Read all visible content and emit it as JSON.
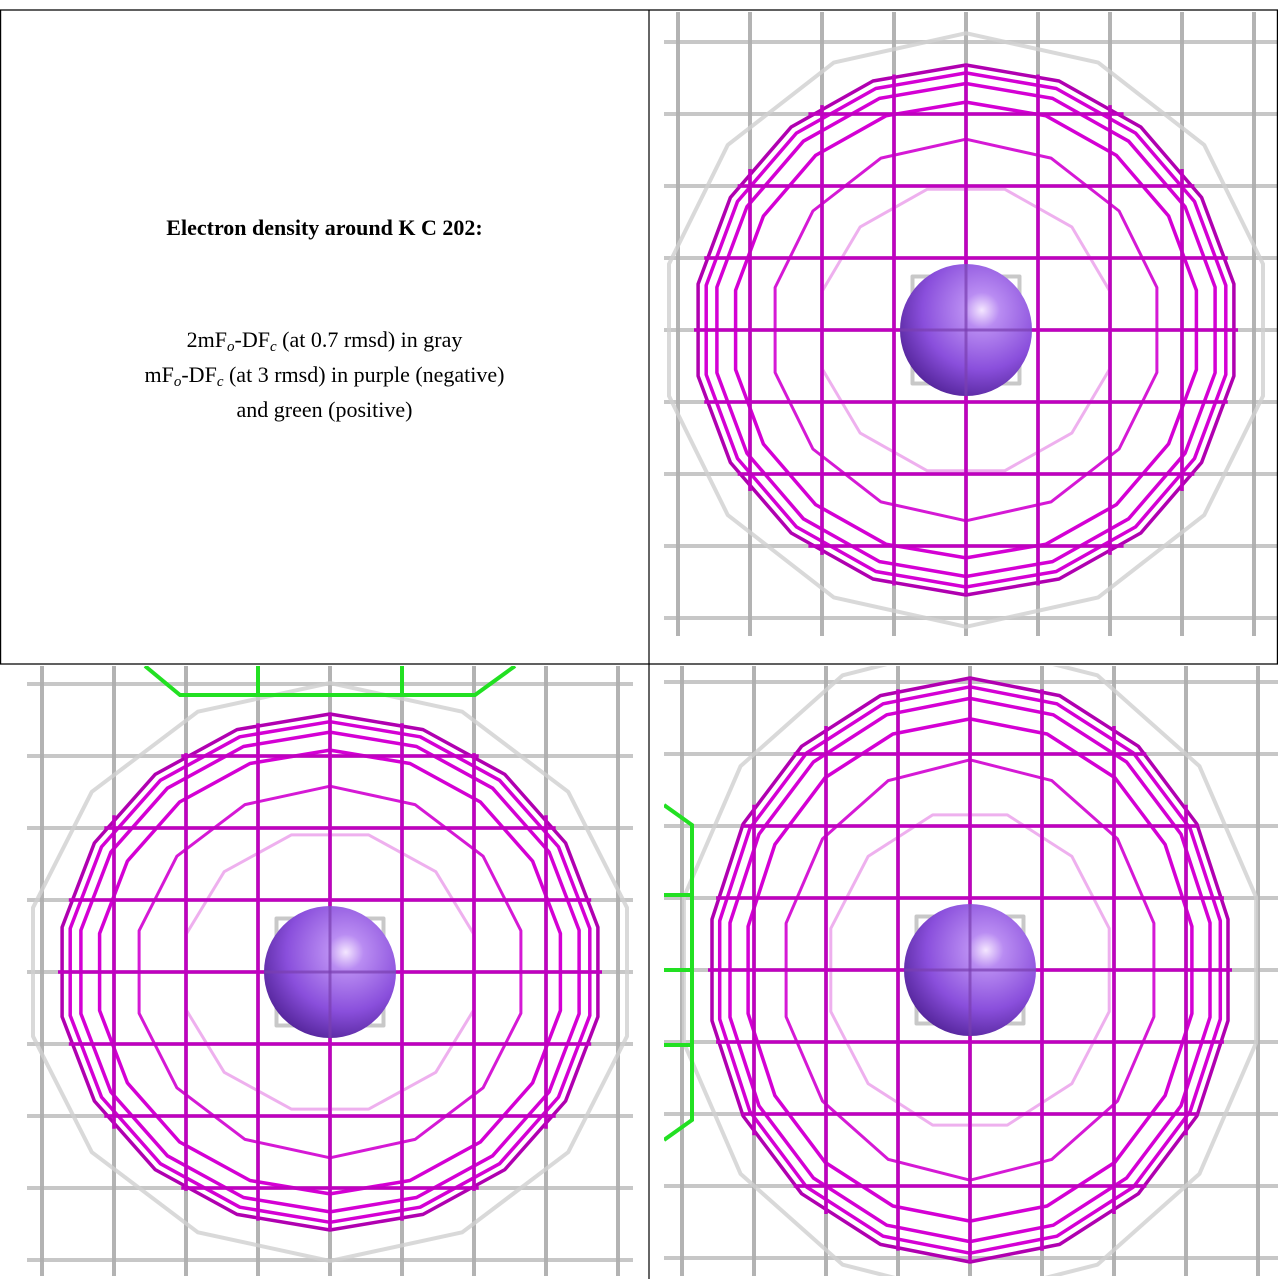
{
  "caption": {
    "title": "Electron density around K C 202:",
    "lines": [
      [
        "2mF",
        "o",
        "-DF",
        "c",
        " (at 0.7 rmsd) in gray"
      ],
      [
        "mF",
        "o",
        "-DF",
        "c",
        " (at 3 rmsd) in purple (negative)"
      ],
      [
        "and green (positive)"
      ]
    ]
  }
}
